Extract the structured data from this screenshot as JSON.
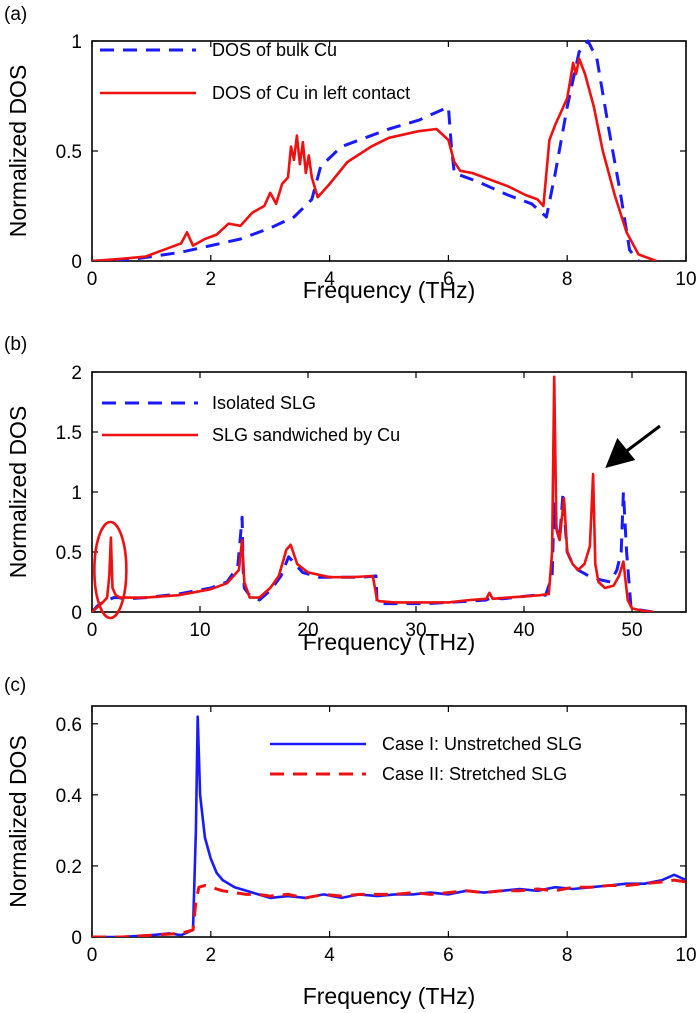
{
  "colors": {
    "blue": "#1a1aff",
    "red": "#ee1111",
    "black": "#000000"
  },
  "chart_data": [
    {
      "panel": "(a)",
      "type": "line",
      "xlabel": "Frequency (THz)",
      "ylabel": "Normalized DOS",
      "xlim": [
        0,
        10
      ],
      "ylim": [
        0,
        1
      ],
      "xticks": [
        "0",
        "2",
        "4",
        "6",
        "8",
        "10"
      ],
      "yticks": [
        "0",
        "0.5",
        "1"
      ],
      "legend_position": "top-left",
      "series": [
        {
          "name": "DOS of bulk Cu",
          "color": "#1a1aff",
          "style": "dashed",
          "x": [
            0,
            0.6,
            1.0,
            1.5,
            2.0,
            2.5,
            3.0,
            3.4,
            3.7,
            3.85,
            4.2,
            4.6,
            5.0,
            5.5,
            6.0,
            6.05,
            6.1,
            6.5,
            7.0,
            7.4,
            7.65,
            7.8,
            8.0,
            8.2,
            8.35,
            8.5,
            8.7,
            8.9,
            9.05,
            9.2
          ],
          "y": [
            0,
            0.005,
            0.02,
            0.04,
            0.07,
            0.1,
            0.15,
            0.2,
            0.28,
            0.43,
            0.52,
            0.56,
            0.6,
            0.64,
            0.7,
            0.52,
            0.4,
            0.36,
            0.3,
            0.26,
            0.2,
            0.4,
            0.7,
            0.95,
            1.0,
            0.92,
            0.6,
            0.3,
            0.05,
            0
          ]
        },
        {
          "name": "DOS of Cu in left contact",
          "color": "#ee1111",
          "style": "solid",
          "x": [
            0,
            0.5,
            0.9,
            1.1,
            1.3,
            1.5,
            1.6,
            1.7,
            1.9,
            2.1,
            2.3,
            2.5,
            2.7,
            2.9,
            3.0,
            3.1,
            3.2,
            3.3,
            3.35,
            3.4,
            3.45,
            3.5,
            3.55,
            3.6,
            3.65,
            3.7,
            3.8,
            4.0,
            4.3,
            4.7,
            5.0,
            5.5,
            5.8,
            6.0,
            6.1,
            6.2,
            6.4,
            6.6,
            7.0,
            7.3,
            7.5,
            7.6,
            7.65,
            7.7,
            7.8,
            7.9,
            8.0,
            8.05,
            8.1,
            8.15,
            8.2,
            8.3,
            8.45,
            8.6,
            8.8,
            9.0,
            9.2,
            9.5
          ],
          "y": [
            0,
            0.01,
            0.02,
            0.04,
            0.06,
            0.08,
            0.13,
            0.07,
            0.1,
            0.12,
            0.17,
            0.16,
            0.22,
            0.25,
            0.31,
            0.26,
            0.35,
            0.38,
            0.52,
            0.46,
            0.57,
            0.44,
            0.54,
            0.4,
            0.48,
            0.38,
            0.29,
            0.35,
            0.45,
            0.52,
            0.56,
            0.59,
            0.6,
            0.55,
            0.45,
            0.41,
            0.4,
            0.38,
            0.34,
            0.3,
            0.28,
            0.25,
            0.4,
            0.55,
            0.62,
            0.68,
            0.74,
            0.82,
            0.9,
            0.85,
            0.92,
            0.85,
            0.7,
            0.5,
            0.3,
            0.13,
            0.03,
            0
          ]
        }
      ]
    },
    {
      "panel": "(b)",
      "type": "line",
      "xlabel": "Frequency (THz)",
      "ylabel": "Normalized DOS",
      "xlim": [
        0,
        55
      ],
      "ylim": [
        0,
        2
      ],
      "xticks": [
        "0",
        "10",
        "20",
        "30",
        "40",
        "50"
      ],
      "yticks": [
        "0",
        "0.5",
        "1",
        "1.5",
        "2"
      ],
      "legend_position": "top-left",
      "annotations": [
        "red ellipse around low-frequency peak near 1.7 THz",
        "black arrow pointing to peak near 46.5 THz"
      ],
      "series": [
        {
          "name": "Isolated SLG",
          "color": "#1a1aff",
          "style": "dashed",
          "x": [
            0,
            0.5,
            1.0,
            1.5,
            2.0,
            2.5,
            3.0,
            5.0,
            8.0,
            11.0,
            12.5,
            13.5,
            13.9,
            14.0,
            14.1,
            14.5,
            15.5,
            16.5,
            17.5,
            18.2,
            18.8,
            19.5,
            21.0,
            23.0,
            25.0,
            26.3,
            26.4,
            26.6,
            28.0,
            30.0,
            31.0,
            33.0,
            35.0,
            36.5,
            37.0,
            38.0,
            39.0,
            40.0,
            41.0,
            42.0,
            42.6,
            42.8,
            43.0,
            43.3,
            43.6,
            44.0,
            44.5,
            45.0,
            46.0,
            47.0,
            48.0,
            48.6,
            49.0,
            49.2,
            49.5,
            49.9,
            50.5,
            52.0
          ],
          "y": [
            0,
            0.05,
            0.08,
            0.1,
            0.12,
            0.12,
            0.11,
            0.12,
            0.15,
            0.2,
            0.25,
            0.38,
            0.79,
            0.35,
            0.2,
            0.15,
            0.1,
            0.18,
            0.3,
            0.46,
            0.4,
            0.33,
            0.29,
            0.29,
            0.29,
            0.3,
            0.07,
            0.07,
            0.07,
            0.07,
            0.07,
            0.08,
            0.09,
            0.1,
            0.12,
            0.11,
            0.12,
            0.13,
            0.14,
            0.14,
            0.3,
            0.9,
            0.7,
            0.6,
            0.98,
            0.5,
            0.4,
            0.35,
            0.3,
            0.27,
            0.25,
            0.35,
            0.5,
            1.0,
            0.5,
            0.05,
            0.02,
            0
          ]
        },
        {
          "name": "SLG sandwiched by Cu",
          "color": "#ee1111",
          "style": "solid",
          "x": [
            0,
            0.5,
            1.0,
            1.4,
            1.6,
            1.75,
            1.9,
            2.2,
            2.6,
            3.0,
            5.0,
            8.0,
            11.0,
            12.5,
            13.6,
            13.9,
            14.1,
            14.6,
            15.5,
            16.5,
            17.3,
            18.0,
            18.4,
            19.0,
            20.0,
            22.0,
            24.0,
            26.0,
            26.4,
            26.6,
            28.0,
            30.0,
            31.0,
            33.0,
            35.0,
            36.5,
            36.8,
            37.1,
            38.5,
            40.0,
            41.5,
            42.3,
            42.6,
            42.8,
            43.0,
            43.3,
            43.7,
            44.0,
            44.5,
            45.0,
            45.6,
            46.1,
            46.4,
            46.6,
            46.9,
            47.5,
            48.3,
            48.8,
            49.2,
            49.6,
            50.0,
            51.0,
            52.0
          ],
          "y": [
            0,
            0.04,
            0.08,
            0.12,
            0.3,
            0.62,
            0.2,
            0.14,
            0.12,
            0.12,
            0.12,
            0.14,
            0.19,
            0.24,
            0.35,
            0.6,
            0.25,
            0.12,
            0.12,
            0.2,
            0.3,
            0.52,
            0.56,
            0.4,
            0.33,
            0.29,
            0.29,
            0.3,
            0.1,
            0.09,
            0.08,
            0.08,
            0.08,
            0.08,
            0.1,
            0.11,
            0.16,
            0.11,
            0.12,
            0.13,
            0.14,
            0.15,
            0.5,
            1.96,
            0.7,
            0.6,
            0.95,
            0.5,
            0.4,
            0.35,
            0.4,
            0.55,
            1.15,
            0.4,
            0.25,
            0.2,
            0.22,
            0.3,
            0.42,
            0.1,
            0.03,
            0.01,
            0
          ]
        }
      ]
    },
    {
      "panel": "(c)",
      "type": "line",
      "xlabel": "Frequency (THz)",
      "ylabel": "Normalized DOS",
      "xlim": [
        0,
        10
      ],
      "ylim": [
        0,
        0.65
      ],
      "xticks": [
        "0",
        "2",
        "4",
        "6",
        "8",
        "10"
      ],
      "yticks": [
        "0",
        "0.2",
        "0.4",
        "0.6"
      ],
      "legend_position": "top-right",
      "series": [
        {
          "name": "Case I: Unstretched SLG",
          "color": "#1a1aff",
          "style": "solid",
          "x": [
            0,
            0.5,
            1.0,
            1.3,
            1.5,
            1.7,
            1.75,
            1.78,
            1.82,
            1.9,
            2.0,
            2.1,
            2.2,
            2.3,
            2.4,
            2.6,
            2.8,
            3.0,
            3.3,
            3.6,
            3.9,
            4.2,
            4.5,
            4.8,
            5.1,
            5.4,
            5.7,
            6.0,
            6.3,
            6.6,
            6.9,
            7.2,
            7.5,
            7.8,
            8.1,
            8.4,
            8.7,
            9.0,
            9.3,
            9.6,
            9.8,
            10.0
          ],
          "y": [
            0,
            0,
            0.005,
            0.01,
            0.005,
            0.02,
            0.3,
            0.62,
            0.4,
            0.28,
            0.22,
            0.18,
            0.16,
            0.15,
            0.14,
            0.13,
            0.12,
            0.11,
            0.115,
            0.11,
            0.12,
            0.11,
            0.12,
            0.115,
            0.12,
            0.12,
            0.125,
            0.12,
            0.13,
            0.125,
            0.13,
            0.135,
            0.13,
            0.14,
            0.135,
            0.14,
            0.145,
            0.15,
            0.15,
            0.16,
            0.175,
            0.16
          ]
        },
        {
          "name": "Case II: Stretched SLG",
          "color": "#ee1111",
          "style": "dashed",
          "x": [
            0,
            0.5,
            1.0,
            1.5,
            1.7,
            1.75,
            1.8,
            1.9,
            2.0,
            2.2,
            2.4,
            2.6,
            2.8,
            3.0,
            3.3,
            3.6,
            3.9,
            4.2,
            4.5,
            4.8,
            5.1,
            5.4,
            5.7,
            6.0,
            6.3,
            6.6,
            6.9,
            7.2,
            7.5,
            7.8,
            8.1,
            8.4,
            8.7,
            9.0,
            9.3,
            9.6,
            9.8,
            10.0
          ],
          "y": [
            0,
            0,
            0.005,
            0.01,
            0.02,
            0.1,
            0.14,
            0.145,
            0.14,
            0.13,
            0.125,
            0.12,
            0.12,
            0.115,
            0.12,
            0.11,
            0.12,
            0.115,
            0.12,
            0.12,
            0.12,
            0.125,
            0.12,
            0.125,
            0.13,
            0.125,
            0.13,
            0.13,
            0.135,
            0.13,
            0.14,
            0.14,
            0.145,
            0.145,
            0.15,
            0.155,
            0.16,
            0.155
          ]
        }
      ]
    }
  ]
}
